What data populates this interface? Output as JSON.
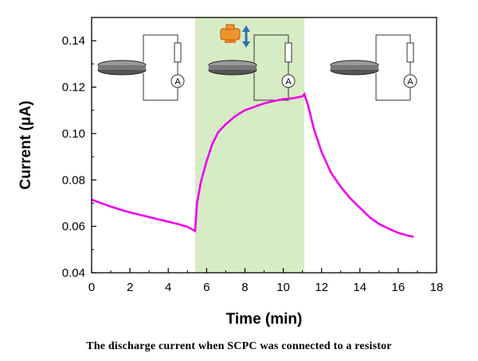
{
  "chart_data": {
    "type": "line",
    "xlabel": "Time (min)",
    "ylabel": "Current (μA)",
    "xlim": [
      0,
      18
    ],
    "ylim": [
      0.04,
      0.15
    ],
    "xticks": [
      0,
      2,
      4,
      6,
      8,
      10,
      12,
      14,
      16,
      18
    ],
    "yticks": [
      0.04,
      0.06,
      0.08,
      0.1,
      0.12,
      0.14
    ],
    "ytick_labels": [
      "0.04",
      "0.06",
      "0.08",
      "0.10",
      "0.12",
      "0.14"
    ],
    "grid": false,
    "highlight_region": {
      "x_start": 5.4,
      "x_end": 11.1,
      "color": "#d6ecc4"
    },
    "series": [
      {
        "color": "#ee00ee",
        "x": [
          0,
          0.5,
          1,
          1.5,
          2,
          2.5,
          3,
          3.5,
          4,
          4.5,
          5,
          5.4,
          5.5,
          5.7,
          6,
          6.3,
          6.6,
          7,
          7.5,
          8,
          8.5,
          9,
          9.5,
          10,
          10.5,
          11,
          11.1,
          11.3,
          11.6,
          12,
          12.5,
          13,
          13.5,
          14,
          14.5,
          15,
          15.5,
          16,
          16.5,
          16.8
        ],
        "y": [
          0.0715,
          0.07,
          0.0685,
          0.0672,
          0.066,
          0.065,
          0.064,
          0.063,
          0.062,
          0.061,
          0.0598,
          0.058,
          0.07,
          0.079,
          0.088,
          0.0955,
          0.1005,
          0.104,
          0.1075,
          0.11,
          0.1115,
          0.113,
          0.114,
          0.1148,
          0.1152,
          0.116,
          0.117,
          0.112,
          0.102,
          0.092,
          0.083,
          0.077,
          0.072,
          0.068,
          0.064,
          0.061,
          0.059,
          0.0572,
          0.056,
          0.0555
        ]
      }
    ],
    "annotations": {
      "circuit_symbol": "A"
    }
  },
  "caption": "The discharge current when SCPC was connected to a resistor"
}
